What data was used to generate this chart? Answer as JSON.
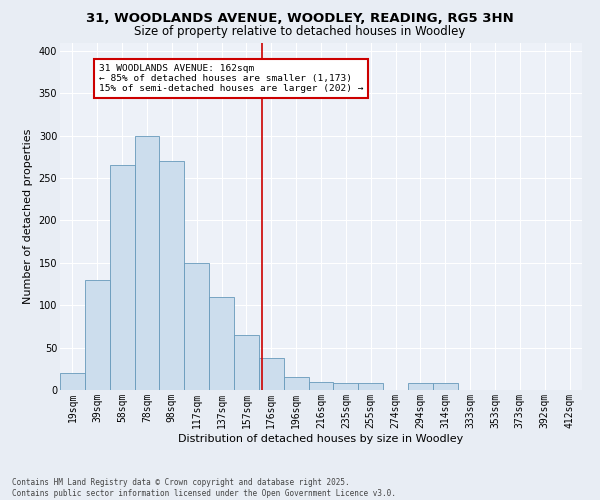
{
  "title": "31, WOODLANDS AVENUE, WOODLEY, READING, RG5 3HN",
  "subtitle": "Size of property relative to detached houses in Woodley",
  "xlabel": "Distribution of detached houses by size in Woodley",
  "ylabel": "Number of detached properties",
  "bin_labels": [
    "19sqm",
    "39sqm",
    "58sqm",
    "78sqm",
    "98sqm",
    "117sqm",
    "137sqm",
    "157sqm",
    "176sqm",
    "196sqm",
    "216sqm",
    "235sqm",
    "255sqm",
    "274sqm",
    "294sqm",
    "314sqm",
    "333sqm",
    "353sqm",
    "373sqm",
    "392sqm",
    "412sqm"
  ],
  "bar_heights": [
    20,
    130,
    265,
    300,
    270,
    150,
    110,
    65,
    38,
    15,
    10,
    8,
    8,
    0,
    8,
    8,
    0,
    0,
    0,
    0,
    0
  ],
  "bar_color": "#ccdded",
  "bar_edge_color": "#6699bb",
  "annotation_title": "31 WOODLANDS AVENUE: 162sqm",
  "annotation_line1": "← 85% of detached houses are smaller (1,173)",
  "annotation_line2": "15% of semi-detached houses are larger (202) →",
  "vline_x": 7.62,
  "annotation_box_color": "#ffffff",
  "annotation_box_edge": "#cc0000",
  "vline_color": "#cc0000",
  "footer1": "Contains HM Land Registry data © Crown copyright and database right 2025.",
  "footer2": "Contains public sector information licensed under the Open Government Licence v3.0.",
  "ylim": [
    0,
    410
  ],
  "yticks": [
    0,
    50,
    100,
    150,
    200,
    250,
    300,
    350,
    400
  ],
  "bg_color": "#e8edf4",
  "plot_bg_color": "#edf1f8",
  "grid_color": "#ffffff",
  "title_fontsize": 9.5,
  "subtitle_fontsize": 8.5,
  "axis_label_fontsize": 8,
  "tick_fontsize": 7,
  "footer_fontsize": 5.5
}
